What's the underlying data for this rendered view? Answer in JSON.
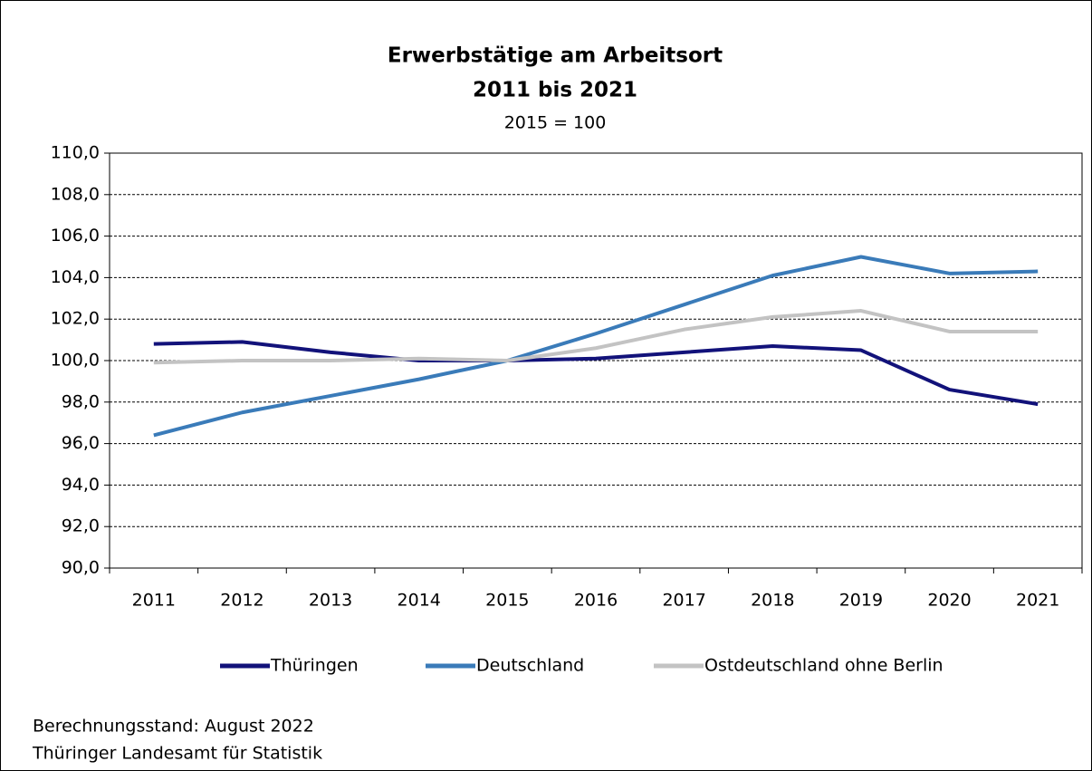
{
  "chart_data": {
    "type": "line",
    "title": [
      "Erwerbstätige am Arbeitsort",
      "2011 bis 2021"
    ],
    "subtitle": "2015 = 100",
    "categories": [
      "2011",
      "2012",
      "2013",
      "2014",
      "2015",
      "2016",
      "2017",
      "2018",
      "2019",
      "2020",
      "2021"
    ],
    "series": [
      {
        "name": "Thüringen",
        "color": "#12127a",
        "values": [
          100.8,
          100.9,
          100.4,
          100.0,
          100.0,
          100.1,
          100.4,
          100.7,
          100.5,
          98.6,
          97.9
        ]
      },
      {
        "name": "Deutschland",
        "color": "#3a7bb9",
        "values": [
          96.4,
          97.5,
          98.3,
          99.1,
          100.0,
          101.3,
          102.7,
          104.1,
          105.0,
          104.2,
          104.3
        ]
      },
      {
        "name": "Ostdeutschland ohne Berlin",
        "color": "#c3c3c3",
        "values": [
          99.9,
          100.0,
          100.0,
          100.1,
          100.0,
          100.6,
          101.5,
          102.1,
          102.4,
          101.4,
          101.4
        ]
      }
    ],
    "ylim": [
      90,
      110
    ],
    "yticks": [
      {
        "value": 90,
        "label": "90,0"
      },
      {
        "value": 92,
        "label": "92,0"
      },
      {
        "value": 94,
        "label": "94,0"
      },
      {
        "value": 96,
        "label": "96,0"
      },
      {
        "value": 98,
        "label": "98,0"
      },
      {
        "value": 100,
        "label": "100,0"
      },
      {
        "value": 102,
        "label": "102,0"
      },
      {
        "value": 104,
        "label": "104,0"
      },
      {
        "value": 106,
        "label": "106,0"
      },
      {
        "value": 108,
        "label": "108,0"
      },
      {
        "value": 110,
        "label": "110,0"
      }
    ],
    "grid": true,
    "legend": "bottom",
    "notes": [
      "Berechnungsstand: August 2022",
      "Thüringer Landesamt für Statistik"
    ]
  }
}
